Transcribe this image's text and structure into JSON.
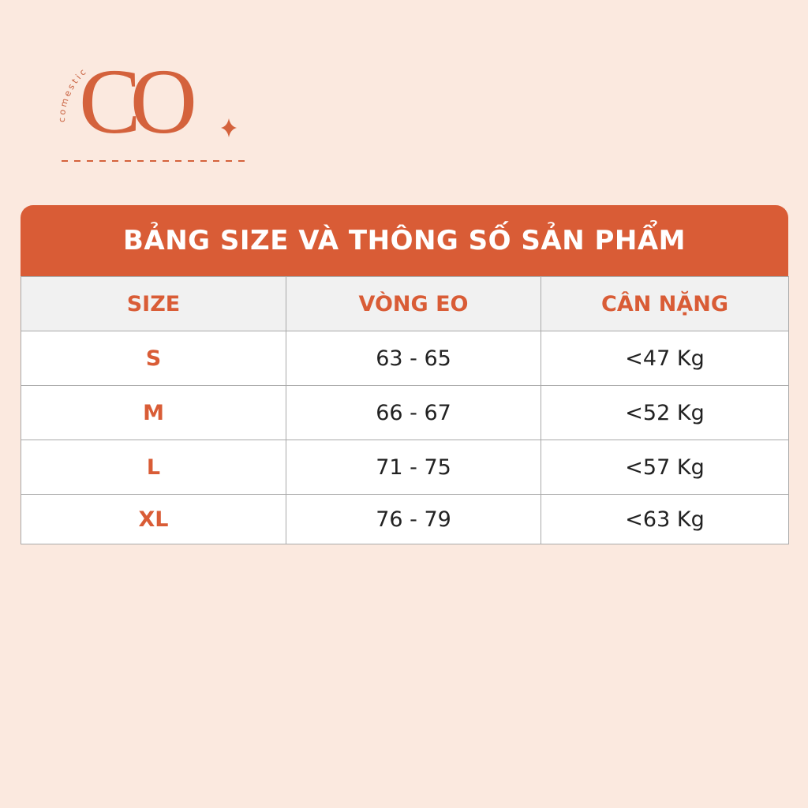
{
  "logo": {
    "tagline": "comestic",
    "mark": "CO"
  },
  "table": {
    "title": "BẢNG SIZE VÀ THÔNG SỐ SẢN PHẨM",
    "header": [
      "SIZE",
      "VÒNG EO",
      "CÂN NẶNG"
    ],
    "rows": [
      [
        "S",
        "63 - 65",
        "<47 Kg"
      ],
      [
        "M",
        "66 - 67",
        "<52 Kg"
      ],
      [
        "L",
        "71 - 75",
        "<57 Kg"
      ],
      [
        "XL",
        "76 - 79",
        "<63 Kg"
      ]
    ]
  }
}
